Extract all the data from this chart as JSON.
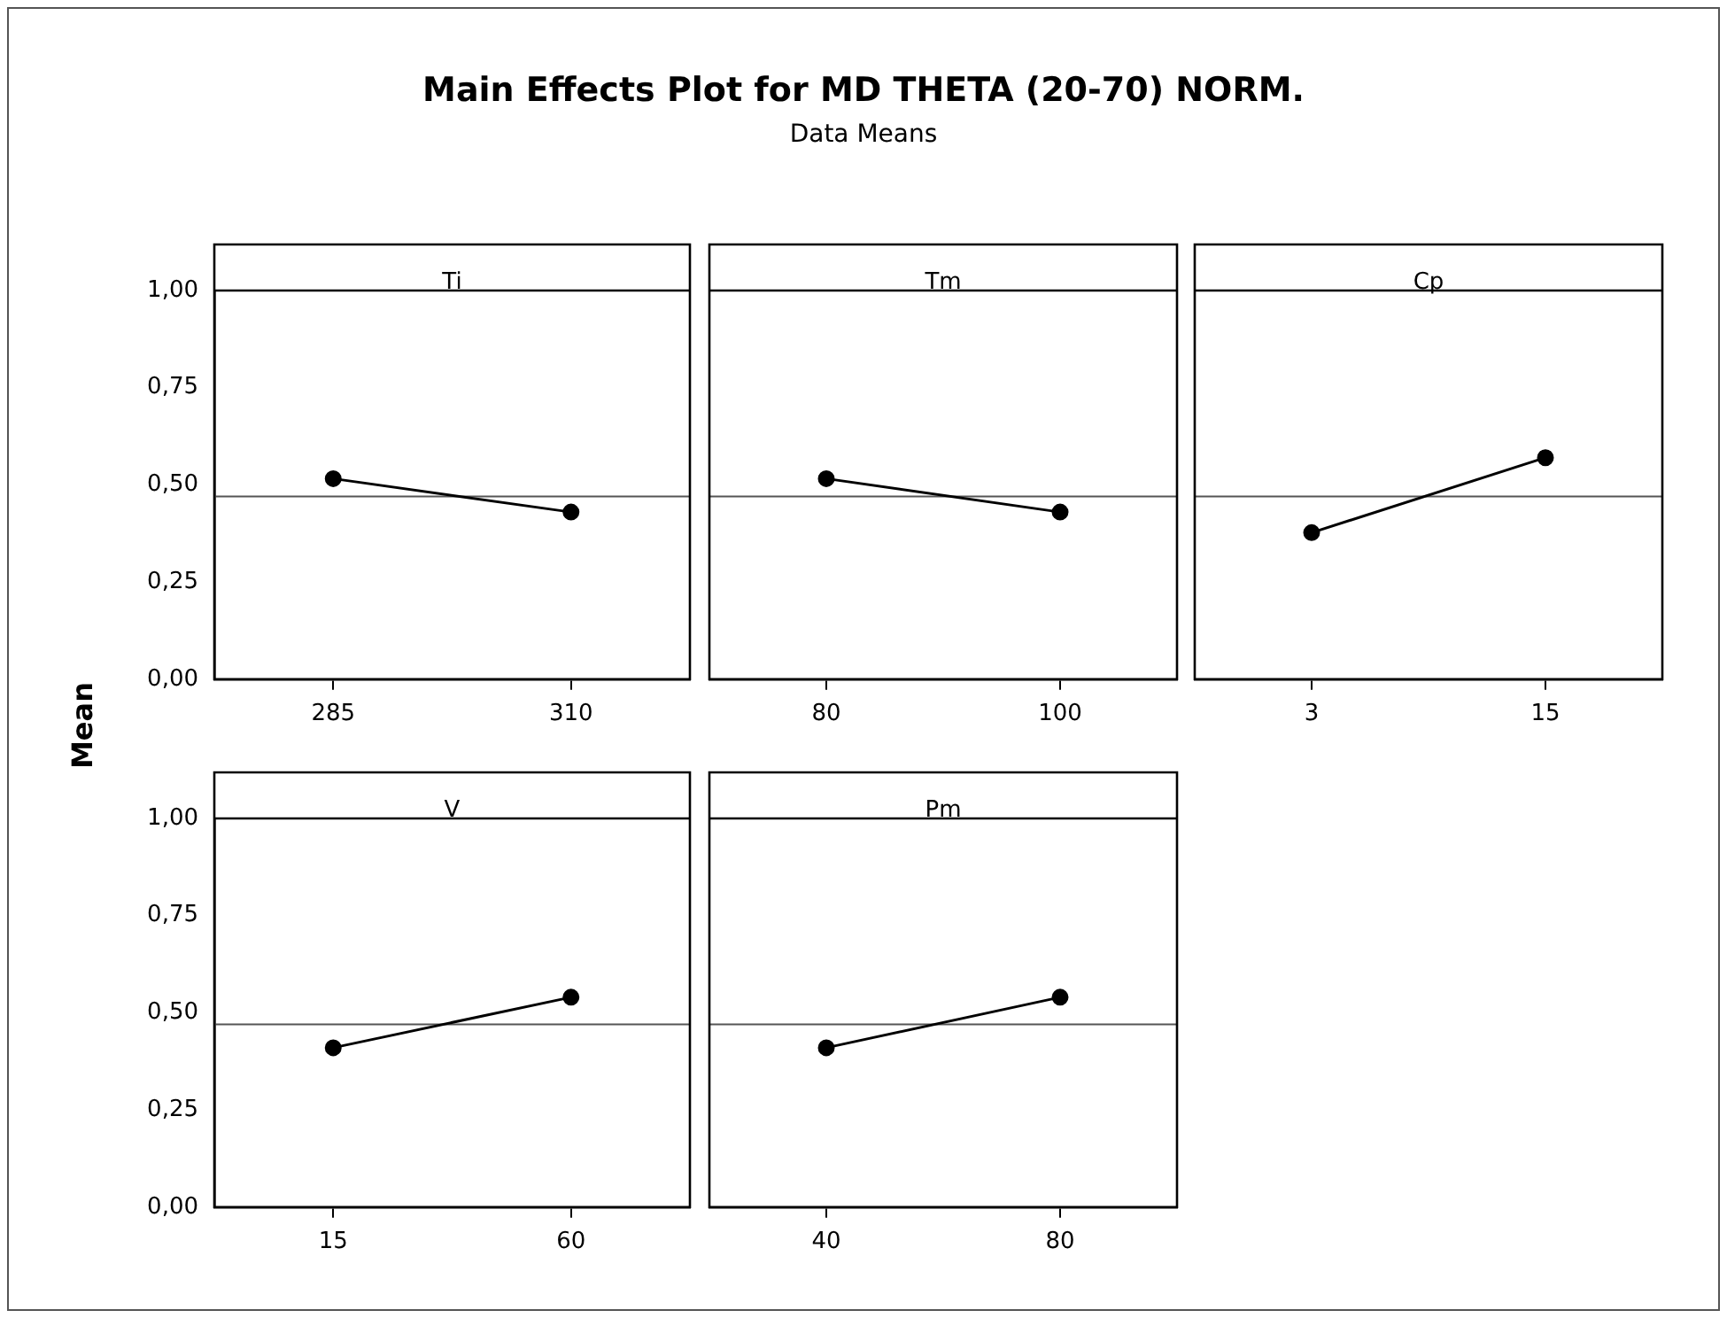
{
  "chart_data": [
    {
      "type": "other",
      "title": "Main Effects Plot for MD THETA (20-70) NORM.",
      "subtitle": "Data Means",
      "ylabel": "Mean"
    },
    {
      "type": "line",
      "title": "Ti",
      "categories": [
        "285",
        "310"
      ],
      "series": [
        {
          "color": "#000000",
          "values": [
            0.516,
            0.43
          ]
        }
      ],
      "ylim": [
        0,
        1
      ],
      "yticks": [
        {
          "value": 0,
          "label": "0,00"
        },
        {
          "value": 0.25,
          "label": "0,25"
        },
        {
          "value": 0.5,
          "label": "0,50"
        },
        {
          "value": 0.75,
          "label": "0,75"
        },
        {
          "value": 1,
          "label": "1,00"
        }
      ],
      "marker": "circle",
      "ref_lines": [
        {
          "axis": "y",
          "value": 0.47,
          "color": "#555555"
        }
      ]
    },
    {
      "type": "line",
      "title": "Tm",
      "categories": [
        "80",
        "100"
      ],
      "series": [
        {
          "color": "#000000",
          "values": [
            0.516,
            0.43
          ]
        }
      ],
      "ylim": [
        0,
        1
      ],
      "marker": "circle",
      "tick_labels": "x",
      "ref_lines": [
        {
          "axis": "y",
          "value": 0.47,
          "color": "#555555"
        }
      ]
    },
    {
      "type": "line",
      "title": "Cp",
      "categories": [
        "3",
        "15"
      ],
      "series": [
        {
          "color": "#000000",
          "values": [
            0.377,
            0.57
          ]
        }
      ],
      "ylim": [
        0,
        1
      ],
      "marker": "circle",
      "tick_labels": "x",
      "ref_lines": [
        {
          "axis": "y",
          "value": 0.47,
          "color": "#555555"
        }
      ]
    },
    {
      "type": "line",
      "title": "V",
      "categories": [
        "15",
        "60"
      ],
      "series": [
        {
          "color": "#000000",
          "values": [
            0.41,
            0.54
          ]
        }
      ],
      "ylim": [
        0,
        1
      ],
      "yticks": [
        {
          "value": 0,
          "label": "0,00"
        },
        {
          "value": 0.25,
          "label": "0,25"
        },
        {
          "value": 0.5,
          "label": "0,50"
        },
        {
          "value": 0.75,
          "label": "0,75"
        },
        {
          "value": 1,
          "label": "1,00"
        }
      ],
      "marker": "circle",
      "ref_lines": [
        {
          "axis": "y",
          "value": 0.47,
          "color": "#555555"
        }
      ]
    },
    {
      "type": "line",
      "title": "Pm",
      "categories": [
        "40",
        "80"
      ],
      "series": [
        {
          "color": "#000000",
          "values": [
            0.41,
            0.54
          ]
        }
      ],
      "ylim": [
        0,
        1
      ],
      "marker": "circle",
      "tick_labels": "x",
      "ref_lines": [
        {
          "axis": "y",
          "value": 0.47,
          "color": "#555555"
        }
      ]
    }
  ]
}
